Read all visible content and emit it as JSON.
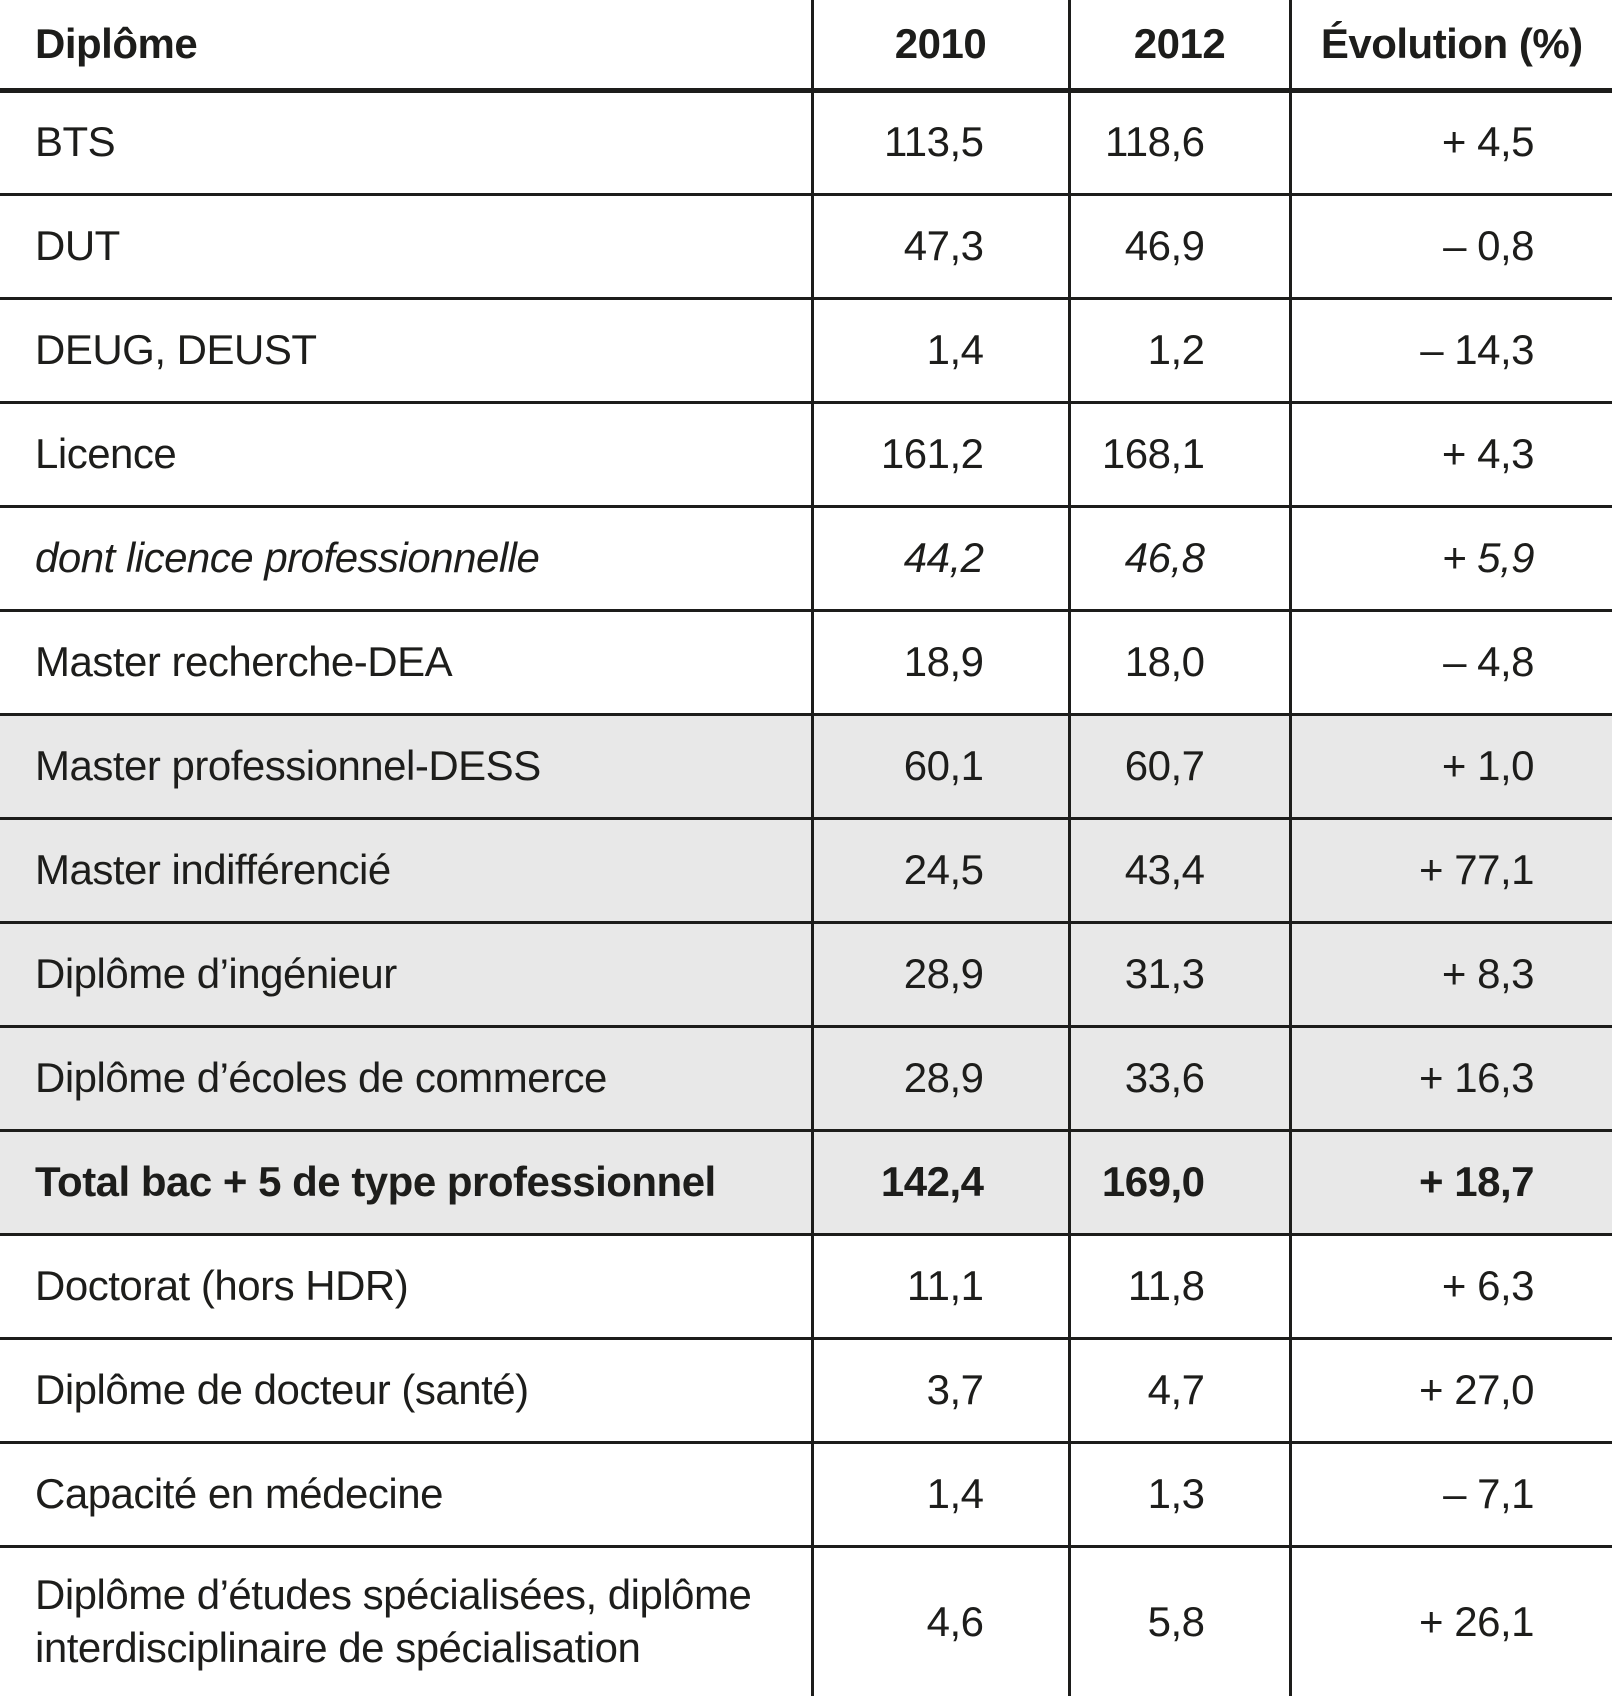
{
  "table": {
    "columns": [
      "Diplôme",
      "2010",
      "2012",
      "Évolution (%)"
    ],
    "rows": [
      {
        "label": "BTS",
        "v2010": "113,5",
        "v2012": "118,6",
        "evolution": "+ 4,5"
      },
      {
        "label": "DUT",
        "v2010": "47,3",
        "v2012": "46,9",
        "evolution": "– 0,8"
      },
      {
        "label": "DEUG, DEUST",
        "v2010": "1,4",
        "v2012": "1,2",
        "evolution": "– 14,3"
      },
      {
        "label": "Licence",
        "v2010": "161,2",
        "v2012": "168,1",
        "evolution": "+ 4,3"
      },
      {
        "label": "dont licence professionnelle",
        "v2010": "44,2",
        "v2012": "46,8",
        "evolution": "+ 5,9"
      },
      {
        "label": "Master recherche-DEA",
        "v2010": "18,9",
        "v2012": "18,0",
        "evolution": "– 4,8"
      },
      {
        "label": "Master professionnel-DESS",
        "v2010": "60,1",
        "v2012": "60,7",
        "evolution": "+ 1,0"
      },
      {
        "label": "Master indifférencié",
        "v2010": "24,5",
        "v2012": "43,4",
        "evolution": "+ 77,1"
      },
      {
        "label": "Diplôme d’ingénieur",
        "v2010": "28,9",
        "v2012": "31,3",
        "evolution": "+ 8,3"
      },
      {
        "label": "Diplôme d’écoles de commerce",
        "v2010": "28,9",
        "v2012": "33,6",
        "evolution": "+ 16,3"
      },
      {
        "label": "Total bac + 5 de type professionnel",
        "v2010": "142,4",
        "v2012": "169,0",
        "evolution": "+ 18,7"
      },
      {
        "label": "Doctorat (hors HDR)",
        "v2010": "11,1",
        "v2012": "11,8",
        "evolution": "+ 6,3"
      },
      {
        "label": "Diplôme de docteur (santé)",
        "v2010": "3,7",
        "v2012": "4,7",
        "evolution": "+ 27,0"
      },
      {
        "label": "Capacité en médecine",
        "v2010": "1,4",
        "v2012": "1,3",
        "evolution": "– 7,1"
      },
      {
        "label": "Diplôme d’études spécialisées, diplôme\ninterdisciplinaire de spécialisation",
        "v2010": "4,6",
        "v2012": "5,8",
        "evolution": "+ 26,1"
      }
    ]
  },
  "colors": {
    "text": "#1d1d1b",
    "row_shading": "#e8e8e8",
    "rule": "#1d1d1b",
    "background": "#ffffff"
  },
  "chart_data": {
    "type": "table",
    "columns": [
      "Diplôme",
      "2010",
      "2012",
      "Évolution (%)"
    ],
    "rows": [
      [
        "BTS",
        113.5,
        118.6,
        4.5
      ],
      [
        "DUT",
        47.3,
        46.9,
        -0.8
      ],
      [
        "DEUG, DEUST",
        1.4,
        1.2,
        -14.3
      ],
      [
        "Licence",
        161.2,
        168.1,
        4.3
      ],
      [
        "dont licence professionnelle",
        44.2,
        46.8,
        5.9
      ],
      [
        "Master recherche-DEA",
        18.9,
        18.0,
        -4.8
      ],
      [
        "Master professionnel-DESS",
        60.1,
        60.7,
        1.0
      ],
      [
        "Master indifférencié",
        24.5,
        43.4,
        77.1
      ],
      [
        "Diplôme d’ingénieur",
        28.9,
        31.3,
        8.3
      ],
      [
        "Diplôme d’écoles de commerce",
        28.9,
        33.6,
        16.3
      ],
      [
        "Total bac + 5 de type professionnel",
        142.4,
        169.0,
        18.7
      ],
      [
        "Doctorat (hors HDR)",
        11.1,
        11.8,
        6.3
      ],
      [
        "Diplôme de docteur (santé)",
        3.7,
        4.7,
        27.0
      ],
      [
        "Capacité en médecine",
        1.4,
        1.3,
        -7.1
      ],
      [
        "Diplôme d’études spécialisées, diplôme interdisciplinaire de spécialisation",
        4.6,
        5.8,
        26.1
      ]
    ]
  }
}
